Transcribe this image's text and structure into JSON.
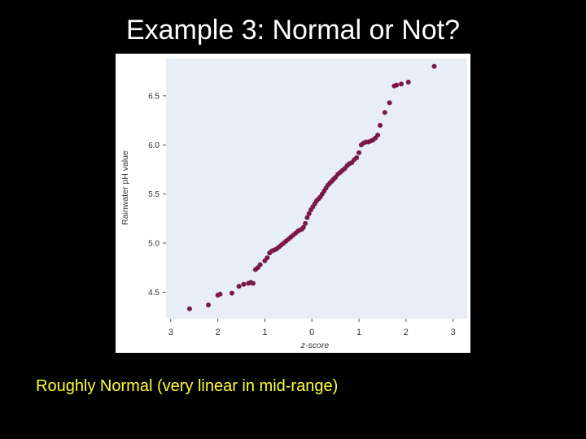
{
  "slide": {
    "title": "Example 3:  Normal or Not?",
    "caption": "Roughly Normal (very linear in mid-range)"
  },
  "colors": {
    "background": "#000000",
    "title": "#ffffff",
    "caption": "#ffff33",
    "plot_area": "#e8eef8",
    "point": "#7a1848"
  },
  "chart_data": {
    "type": "scatter",
    "title": "",
    "xlabel": "z-score",
    "ylabel": "Rainwater pH value",
    "xlim": [
      -3.1,
      3.3
    ],
    "ylim": [
      4.23,
      6.88
    ],
    "x_ticks": [
      -3,
      -2,
      -1,
      0,
      1,
      2,
      3
    ],
    "x_tick_labels": [
      "3",
      "2",
      "1",
      "0",
      "1",
      "2",
      "3"
    ],
    "y_ticks": [
      4.5,
      5.0,
      5.5,
      6.0,
      6.5
    ],
    "y_tick_labels": [
      "4.5",
      "5.0",
      "5.5",
      "6.0",
      "6.5"
    ],
    "grid": false,
    "series": [
      {
        "x": [
          -2.6,
          -2.2,
          -2.0,
          -1.95,
          -1.7,
          -1.55,
          -1.45,
          -1.35,
          -1.25,
          -1.3,
          -1.2,
          -1.15,
          -1.1,
          -1.0,
          -0.95,
          -0.9,
          -0.85,
          -0.8,
          -0.75,
          -0.7,
          -0.65,
          -0.6,
          -0.55,
          -0.5,
          -0.45,
          -0.4,
          -0.35,
          -0.3,
          -0.27,
          -0.22,
          -0.18,
          -0.14,
          -0.1,
          -0.06,
          -0.02,
          0.02,
          0.06,
          0.1,
          0.14,
          0.18,
          0.22,
          0.26,
          0.3,
          0.34,
          0.38,
          0.42,
          0.46,
          0.5,
          0.55,
          0.6,
          0.65,
          0.7,
          0.75,
          0.8,
          0.85,
          0.9,
          0.95,
          1.0,
          1.05,
          1.1,
          1.15,
          1.2,
          1.25,
          1.3,
          1.35,
          1.4,
          1.45,
          1.55,
          1.65,
          1.75,
          1.8,
          1.9,
          2.05,
          2.6
        ],
        "y": [
          4.33,
          4.37,
          4.47,
          4.48,
          4.49,
          4.56,
          4.58,
          4.59,
          4.59,
          4.6,
          4.73,
          4.75,
          4.78,
          4.82,
          4.85,
          4.9,
          4.92,
          4.93,
          4.94,
          4.96,
          4.98,
          5.0,
          5.02,
          5.04,
          5.06,
          5.08,
          5.1,
          5.12,
          5.13,
          5.14,
          5.16,
          5.2,
          5.26,
          5.3,
          5.34,
          5.37,
          5.4,
          5.43,
          5.45,
          5.47,
          5.5,
          5.53,
          5.56,
          5.59,
          5.61,
          5.63,
          5.65,
          5.67,
          5.7,
          5.72,
          5.74,
          5.76,
          5.79,
          5.81,
          5.82,
          5.85,
          5.87,
          5.92,
          6.0,
          6.02,
          6.03,
          6.03,
          6.04,
          6.05,
          6.07,
          6.1,
          6.2,
          6.33,
          6.43,
          6.6,
          6.61,
          6.62,
          6.64,
          6.8
        ]
      }
    ]
  }
}
